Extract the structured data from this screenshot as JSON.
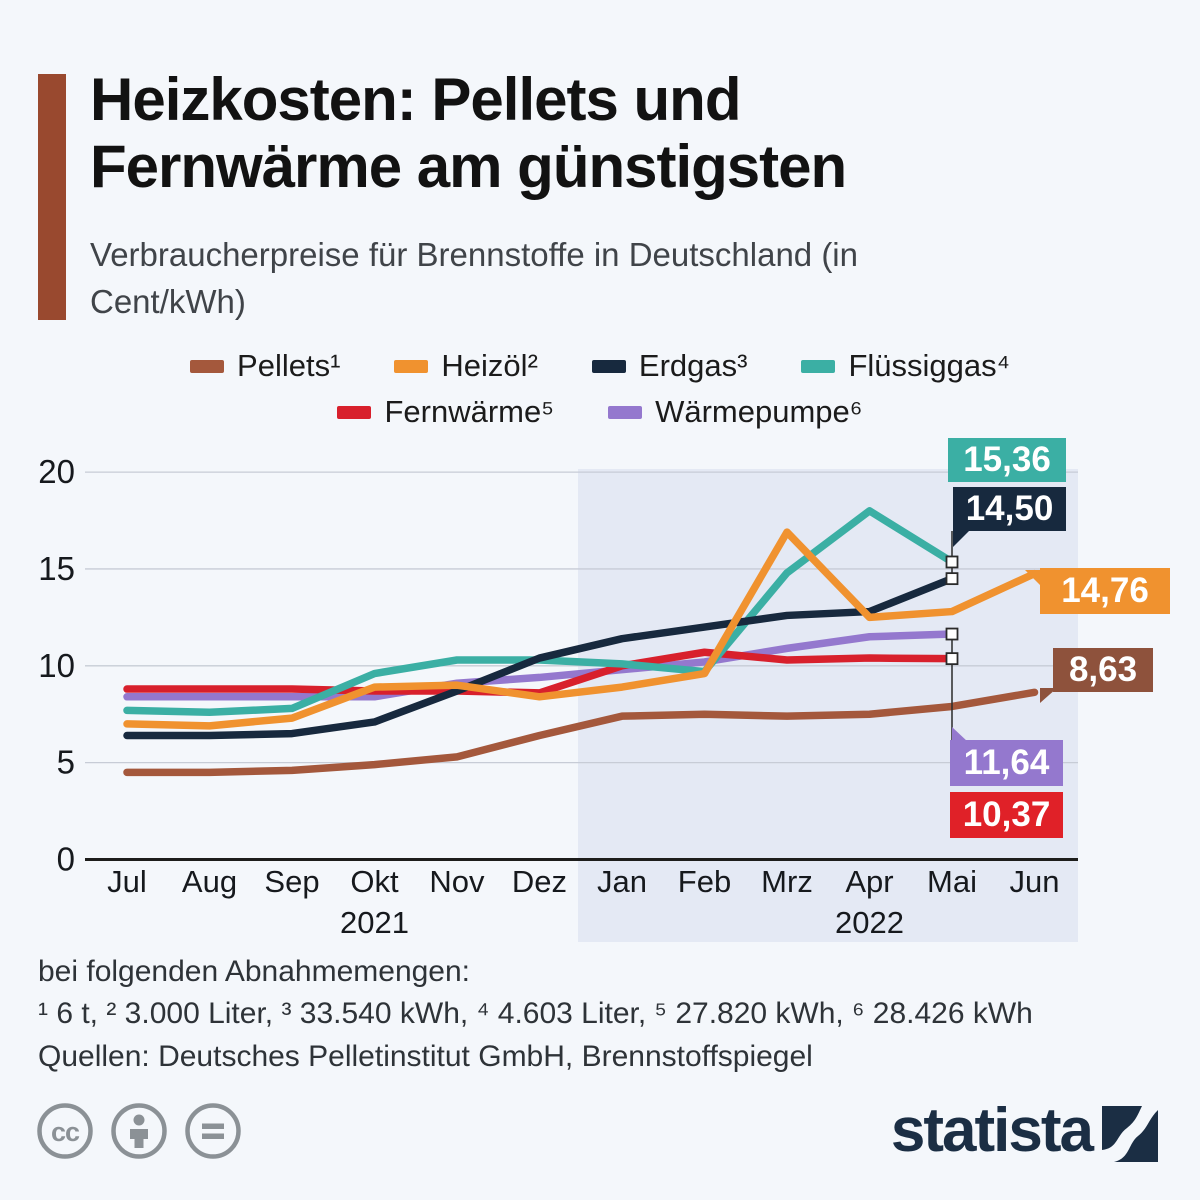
{
  "title": {
    "line1": "Heizkosten: Pellets und",
    "line2": "Fernwärme am günstigsten"
  },
  "subtitle": "Verbraucherpreise für Brennstoffe in Deutschland (in Cent/kWh)",
  "chart_data": {
    "type": "line",
    "title": "Heizkosten: Pellets und Fernwärme am günstigsten",
    "ylabel": "Cent/kWh",
    "ylim": [
      0,
      20
    ],
    "yticks": [
      0,
      5,
      10,
      15,
      20
    ],
    "grid": true,
    "x": [
      "Jul",
      "Aug",
      "Sep",
      "Okt",
      "Nov",
      "Dez",
      "Jan",
      "Feb",
      "Mrz",
      "Apr",
      "Mai",
      "Jun"
    ],
    "year_labels": [
      {
        "label": "2021",
        "under_month": "Okt"
      },
      {
        "label": "2022",
        "under_month": "Apr"
      }
    ],
    "highlight_region": {
      "from_month": "Jan",
      "to_month": "Jun",
      "color": "#e4e9f4"
    },
    "series": [
      {
        "id": "pellets",
        "name": "Pellets",
        "label": "Pellets¹",
        "color": "#a4583c",
        "label_bg": "#8e523c",
        "values": [
          4.5,
          4.5,
          4.6,
          4.9,
          5.3,
          6.4,
          7.4,
          7.5,
          7.4,
          7.5,
          7.9,
          8.63
        ],
        "end_label": "8,63"
      },
      {
        "id": "heizoel",
        "name": "Heizöl",
        "label": "Heizöl²",
        "color": "#f0922f",
        "label_bg": "#f0922f",
        "values": [
          7.0,
          6.9,
          7.3,
          8.9,
          9.0,
          8.4,
          8.9,
          9.6,
          16.9,
          12.5,
          12.8,
          14.76
        ],
        "end_label": "14,76"
      },
      {
        "id": "erdgas",
        "name": "Erdgas",
        "label": "Erdgas³",
        "color": "#17293e",
        "label_bg": "#17293e",
        "values": [
          6.4,
          6.4,
          6.5,
          7.1,
          8.7,
          10.4,
          11.4,
          12.0,
          12.6,
          12.8,
          14.5,
          null
        ],
        "end_label": "14,50"
      },
      {
        "id": "fluessiggas",
        "name": "Flüssiggas",
        "label": "Flüssiggas⁴",
        "color": "#3bafa4",
        "label_bg": "#3bafa4",
        "values": [
          7.7,
          7.6,
          7.8,
          9.6,
          10.3,
          10.3,
          10.1,
          9.7,
          14.8,
          18.0,
          15.36,
          null
        ],
        "end_label": "15,36"
      },
      {
        "id": "fernwaerme",
        "name": "Fernwärme",
        "label": "Fernwärme⁵",
        "color": "#d8202c",
        "label_bg": "#e02128",
        "values": [
          8.8,
          8.8,
          8.8,
          8.7,
          8.7,
          8.6,
          10.0,
          10.7,
          10.3,
          10.4,
          10.37,
          null
        ],
        "end_label": "10,37"
      },
      {
        "id": "waermepumpe",
        "name": "Wärmepumpe",
        "label": "Wärmepumpe⁶",
        "color": "#9478ce",
        "label_bg": "#9478ce",
        "values": [
          8.4,
          8.4,
          8.4,
          8.4,
          9.1,
          9.4,
          9.8,
          10.2,
          10.9,
          11.5,
          11.64,
          null
        ],
        "end_label": "11,64"
      }
    ]
  },
  "footer": {
    "note_intro": "bei folgenden Abnahmemengen:",
    "note_detail": "¹ 6 t, ² 3.000 Liter, ³ 33.540 kWh, ⁴ 4.603 Liter, ⁵ 27.820 kWh, ⁶ 28.426 kWh",
    "sources": "Quellen: Deutsches Pelletinstitut GmbH, Brennstoffspiegel"
  },
  "branding": {
    "logo_text": "statista",
    "logo_color": "#1b2e44",
    "cc_icons": [
      "cc",
      "by-person",
      "nd-equals"
    ]
  }
}
